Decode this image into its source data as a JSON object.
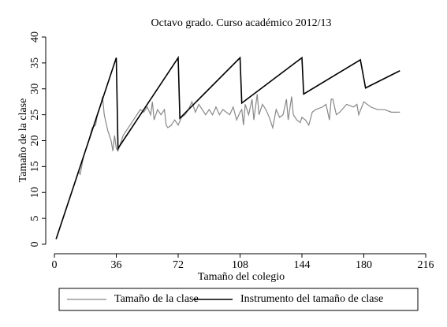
{
  "chart_data": {
    "type": "line",
    "title": "Octavo grado. Curso académico 2012/13",
    "x_label": "Tamaño del colegio",
    "y_label": "Tamaño de la clase",
    "xlim": [
      0,
      216
    ],
    "xticks": [
      0,
      36,
      72,
      108,
      144,
      180,
      216
    ],
    "ylim": [
      0,
      40
    ],
    "yticks": [
      0,
      5,
      10,
      15,
      20,
      25,
      30,
      35,
      40
    ],
    "legend": "bottom",
    "series": [
      {
        "name": "Tamaño de la clase",
        "color": "#888888",
        "x": [
          1,
          5,
          10,
          14,
          15,
          17,
          20,
          22,
          24,
          25,
          27,
          28,
          29,
          31,
          33,
          34,
          35,
          36,
          37,
          38,
          40,
          42,
          44,
          46,
          48,
          50,
          52,
          54,
          56,
          57,
          58,
          60,
          62,
          64,
          65,
          66,
          68,
          70,
          72,
          74,
          76,
          78,
          80,
          82,
          84,
          86,
          88,
          90,
          92,
          94,
          96,
          98,
          100,
          102,
          104,
          106,
          108,
          109,
          110,
          111,
          113,
          115,
          116,
          118,
          119,
          121,
          123,
          125,
          127,
          129,
          131,
          133,
          135,
          136,
          138,
          139,
          141,
          143,
          144,
          146,
          148,
          150,
          152,
          156,
          158,
          160,
          161,
          162,
          164,
          166,
          170,
          174,
          176,
          177,
          180,
          184,
          188,
          192,
          196,
          201
        ],
        "values": [
          1,
          5,
          10,
          14,
          13.5,
          17,
          20,
          22.5,
          23,
          25,
          27,
          28.5,
          25,
          22,
          20,
          18,
          21,
          18.5,
          18,
          19,
          21,
          22,
          23,
          24,
          25,
          26,
          25.5,
          26.5,
          25,
          27.5,
          24,
          26,
          25,
          26,
          23,
          22.5,
          23,
          24,
          23,
          24.5,
          25,
          26,
          27.5,
          25.5,
          27,
          26,
          25,
          26,
          25,
          26.5,
          25,
          26,
          25.5,
          25,
          26.5,
          24,
          25.5,
          26,
          23,
          27,
          25,
          28,
          24,
          29,
          25,
          27,
          26,
          24.5,
          22.5,
          26,
          24.5,
          25,
          28,
          24,
          28.5,
          25,
          24,
          23.5,
          24.5,
          24,
          23,
          25.5,
          26,
          26.5,
          27,
          24,
          28,
          28,
          25,
          25.5,
          27,
          26.5,
          27,
          25,
          27.5,
          26.5,
          26,
          26,
          25.5,
          25.5
        ]
      },
      {
        "name": "Instrumento del tamaño de clase",
        "color": "#000000",
        "x": [
          1,
          36,
          37,
          72,
          73,
          108,
          109,
          144,
          145,
          178,
          181,
          201
        ],
        "values": [
          1,
          36,
          18.5,
          36,
          24.33,
          36,
          27.25,
          36,
          29,
          35.6,
          30.17,
          33.5
        ]
      }
    ]
  }
}
